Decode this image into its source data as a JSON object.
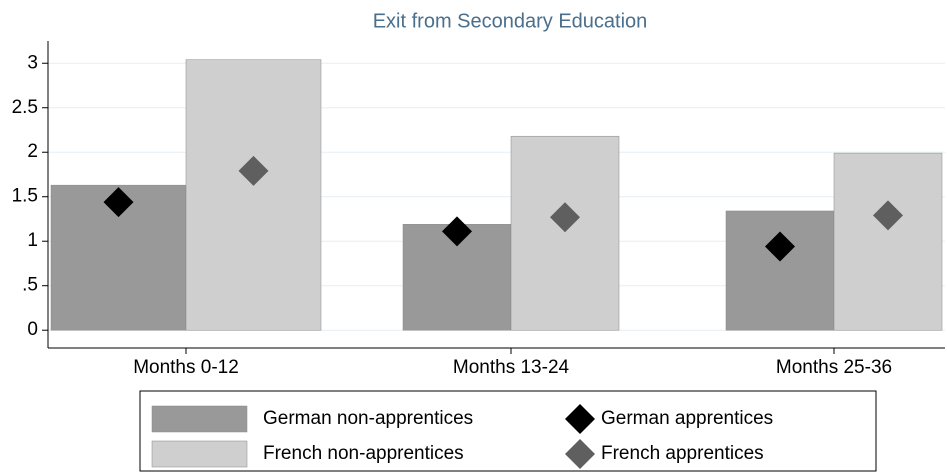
{
  "chart_data": {
    "type": "bar",
    "title": "Exit from Secondary Education",
    "categories": [
      "Months 0-12",
      "Months 13-24",
      "Months 25-36"
    ],
    "series": [
      {
        "name": "German non-apprentices",
        "type": "bar",
        "color": "#999999",
        "values": [
          1.63,
          1.19,
          1.34
        ]
      },
      {
        "name": "French non-apprentices",
        "type": "bar",
        "color": "#cfcfcf",
        "values": [
          3.04,
          2.18,
          1.99
        ]
      },
      {
        "name": "German apprentices",
        "type": "marker",
        "color": "#000000",
        "values": [
          1.44,
          1.11,
          0.94
        ]
      },
      {
        "name": "French apprentices",
        "type": "marker",
        "color": "#5f5f5f",
        "values": [
          1.79,
          1.27,
          1.29
        ]
      }
    ],
    "ylim": [
      -0.2,
      3.25
    ],
    "yticks": [
      0,
      {
        "value": 0.5,
        "label": ".5"
      },
      1,
      1.5,
      2,
      2.5,
      3
    ],
    "grid": true,
    "legend": "bottom"
  }
}
